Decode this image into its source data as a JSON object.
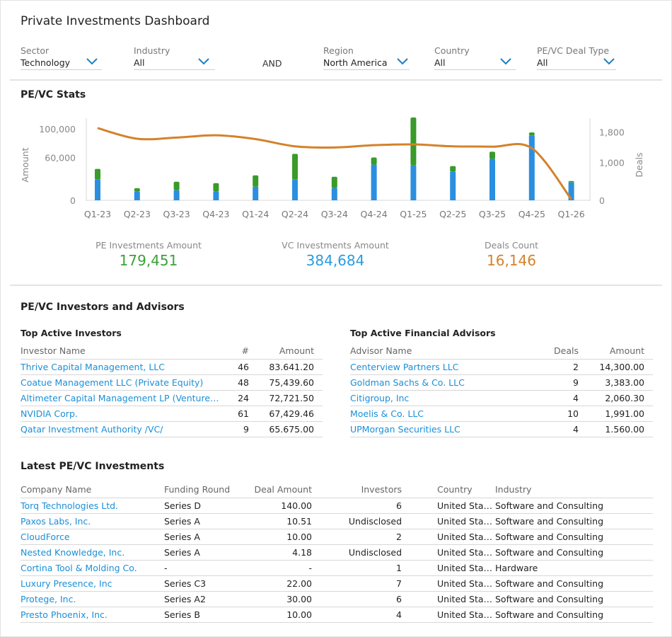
{
  "page": {
    "title": "Private Investments Dashboard"
  },
  "filters": {
    "sector": {
      "label": "Sector",
      "value": "Technology"
    },
    "industry": {
      "label": "Industry",
      "value": "All"
    },
    "and_label": "AND",
    "region": {
      "label": "Region",
      "value": "North America"
    },
    "country": {
      "label": "Country",
      "value": "All"
    },
    "deal_type": {
      "label": "PE/VC Deal Type",
      "value": "All"
    }
  },
  "stats_section": {
    "title": "PE/VC Stats",
    "pe": {
      "label": "PE Investments Amount",
      "value": "179,451",
      "color": "#3aa23a"
    },
    "vc": {
      "label": "VC Investments Amount",
      "value": "384,684",
      "color": "#2b9be0"
    },
    "deals": {
      "label": "Deals Count",
      "value": "16,146",
      "color": "#d4822a"
    }
  },
  "chart_data": {
    "type": "bar",
    "categories": [
      "Q1-23",
      "Q2-23",
      "Q3-23",
      "Q4-23",
      "Q1-24",
      "Q2-24",
      "Q3-24",
      "Q4-24",
      "Q1-25",
      "Q2-25",
      "Q3-25",
      "Q4-25",
      "Q1-26"
    ],
    "series": [
      {
        "name": "VC Investments Amount",
        "kind": "stacked-bar",
        "color": "#2b8fe0",
        "values": [
          29000,
          12000,
          14000,
          12000,
          19000,
          29000,
          17000,
          50000,
          49000,
          40000,
          58000,
          91000,
          25000
        ]
      },
      {
        "name": "PE Investments Amount",
        "kind": "stacked-bar",
        "color": "#3a9a2a",
        "values": [
          15000,
          5000,
          12000,
          12000,
          16000,
          36000,
          16000,
          10000,
          67000,
          8000,
          10000,
          4000,
          2000
        ]
      },
      {
        "name": "Deals Count",
        "kind": "line",
        "axis": "right",
        "color": "#d4822a",
        "values": [
          1900,
          1620,
          1650,
          1710,
          1610,
          1420,
          1390,
          1450,
          1470,
          1420,
          1410,
          1370,
          30
        ]
      }
    ],
    "ylabel": "Amount",
    "y2label": "Deals",
    "y_ticks": [
      "100,000",
      "60,000",
      "0"
    ],
    "y2_ticks": [
      "1,800",
      "1,000",
      "0"
    ],
    "ylim": [
      0,
      115000
    ],
    "y2lim": [
      0,
      2160
    ]
  },
  "investors_section": {
    "title": "PE/VC Investors and Advisors",
    "investors": {
      "title": "Top Active Investors",
      "headers": [
        "Investor Name",
        "#",
        "Amount"
      ],
      "rows": [
        [
          "Thrive Capital Management, LLC",
          "46",
          "83.641.20"
        ],
        [
          "Coatue Management LLC (Private Equity)",
          "48",
          "75,439.60"
        ],
        [
          "Altimeter Capital Management LP (Venture ...",
          "24",
          "72,721.50"
        ],
        [
          "NVIDIA Corp.",
          "61",
          "67,429.46"
        ],
        [
          "Qatar Investment Authority /VC/",
          "9",
          "65.675.00"
        ]
      ]
    },
    "advisors": {
      "title": "Top Active Financial Advisors",
      "headers": [
        "Advisor Name",
        "Deals",
        "Amount"
      ],
      "rows": [
        [
          "Centerview Partners LLC",
          "2",
          "14,300.00"
        ],
        [
          "Goldman Sachs & Co. LLC",
          "9",
          "3,383.00"
        ],
        [
          "Citigroup, Inc",
          "4",
          "2,060.30"
        ],
        [
          "Moelis & Co. LLC",
          "10",
          "1,991.00"
        ],
        [
          "UPMorgan Securities LLC",
          "4",
          "1.560.00"
        ]
      ]
    }
  },
  "latest_section": {
    "title": "Latest PE/VC Investments",
    "headers": [
      "Company Name",
      "Funding Round",
      "Deal Amount",
      "Investors",
      "Country",
      "Industry"
    ],
    "rows": [
      [
        "Torq Technologies Ltd.",
        "Series D",
        "140.00",
        "6",
        "United States",
        "Software and Consulting"
      ],
      [
        "Paxos Labs, Inc.",
        "Series A",
        "10.51",
        "Undisclosed",
        "United States",
        "Software and Consulting"
      ],
      [
        "CloudForce",
        "Series A",
        "10.00",
        "2",
        "United States",
        "Software and Consulting"
      ],
      [
        "Nested Knowledge, Inc.",
        "Series A",
        "4.18",
        "Undisclosed",
        "United States",
        "Software and Consulting"
      ],
      [
        "Cortina Tool & Molding Co.",
        "-",
        "-",
        "1",
        "United States",
        "Hardware"
      ],
      [
        "Luxury Presence, Inc",
        "Series C3",
        "22.00",
        "7",
        "United States",
        "Software and Consulting"
      ],
      [
        "Protege, Inc.",
        "Series A2",
        "30.00",
        "6",
        "United States",
        "Software and Consulting"
      ],
      [
        "Presto Phoenix, Inc.",
        "Series B",
        "10.00",
        "4",
        "United States",
        "Software and Consulting"
      ]
    ]
  }
}
